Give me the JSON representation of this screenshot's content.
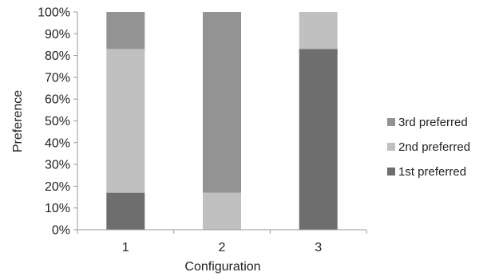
{
  "chart_data": {
    "type": "bar",
    "stacked": true,
    "title": "",
    "xlabel": "Configuration",
    "ylabel": "Preference",
    "categories": [
      "1",
      "2",
      "3"
    ],
    "ylim": [
      0,
      100
    ],
    "yticks": [
      "0%",
      "10%",
      "20%",
      "30%",
      "40%",
      "50%",
      "60%",
      "70%",
      "80%",
      "90%",
      "100%"
    ],
    "grid": false,
    "legend_position": "right",
    "series": [
      {
        "name": "1st preferred",
        "values": [
          17,
          0,
          83
        ],
        "color": "#6e6e6e"
      },
      {
        "name": "2nd preferred",
        "values": [
          66,
          17,
          17
        ],
        "color": "#c0c0c0"
      },
      {
        "name": "3rd preferred",
        "values": [
          17,
          83,
          0
        ],
        "color": "#939393"
      }
    ],
    "legend_order": [
      "3rd preferred",
      "2nd preferred",
      "1st preferred"
    ]
  }
}
